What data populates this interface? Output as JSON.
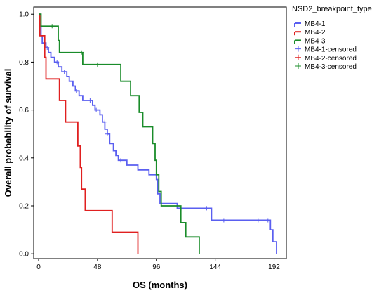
{
  "chart_data": {
    "type": "line",
    "title": "",
    "xlabel": "OS (months)",
    "ylabel": "Overall probability of survival",
    "xlim": [
      -4,
      202
    ],
    "ylim": [
      -0.02,
      1.03
    ],
    "x_ticks": [
      "0",
      "48",
      "96",
      "144",
      "192"
    ],
    "x_tick_values": [
      0,
      48,
      96,
      144,
      192
    ],
    "y_ticks": [
      "0.0",
      "0.2",
      "0.4",
      "0.6",
      "0.8",
      "1.0"
    ],
    "y_tick_values": [
      0.0,
      0.2,
      0.4,
      0.6,
      0.8,
      1.0
    ],
    "legend_title": "NSD2_breakpoint_type",
    "legend_position": "right",
    "series": [
      {
        "name": "MB4-1",
        "color": "#5a5ff0",
        "steps": [
          [
            0,
            1.0
          ],
          [
            1,
            0.95
          ],
          [
            2,
            0.91
          ],
          [
            3,
            0.88
          ],
          [
            6,
            0.86
          ],
          [
            8,
            0.84
          ],
          [
            10,
            0.82
          ],
          [
            13,
            0.8
          ],
          [
            16,
            0.78
          ],
          [
            19,
            0.76
          ],
          [
            23,
            0.74
          ],
          [
            25,
            0.72
          ],
          [
            28,
            0.7
          ],
          [
            30,
            0.68
          ],
          [
            33,
            0.66
          ],
          [
            36,
            0.64
          ],
          [
            44,
            0.62
          ],
          [
            46,
            0.6
          ],
          [
            50,
            0.58
          ],
          [
            52,
            0.55
          ],
          [
            54,
            0.52
          ],
          [
            56,
            0.5
          ],
          [
            58,
            0.46
          ],
          [
            61,
            0.43
          ],
          [
            63,
            0.41
          ],
          [
            65,
            0.39
          ],
          [
            72,
            0.37
          ],
          [
            81,
            0.35
          ],
          [
            90,
            0.33
          ],
          [
            96,
            0.31
          ],
          [
            97,
            0.25
          ],
          [
            99,
            0.21
          ],
          [
            113,
            0.19
          ],
          [
            141,
            0.14
          ],
          [
            189,
            0.1
          ],
          [
            191,
            0.05
          ],
          [
            194,
            0.0
          ]
        ],
        "censored": [
          [
            7,
            0.86
          ],
          [
            15,
            0.8
          ],
          [
            21,
            0.76
          ],
          [
            31,
            0.68
          ],
          [
            42,
            0.64
          ],
          [
            47,
            0.6
          ],
          [
            54,
            0.55
          ],
          [
            56,
            0.5
          ],
          [
            67,
            0.39
          ],
          [
            117,
            0.19
          ],
          [
            137,
            0.19
          ],
          [
            151,
            0.14
          ],
          [
            179,
            0.14
          ],
          [
            187,
            0.14
          ]
        ]
      },
      {
        "name": "MB4-2",
        "color": "#e02020",
        "steps": [
          [
            0,
            1.0
          ],
          [
            1,
            0.91
          ],
          [
            5,
            0.82
          ],
          [
            6,
            0.73
          ],
          [
            17,
            0.64
          ],
          [
            22,
            0.55
          ],
          [
            32,
            0.45
          ],
          [
            34,
            0.36
          ],
          [
            35,
            0.27
          ],
          [
            38,
            0.18
          ],
          [
            60,
            0.09
          ],
          [
            81,
            0.0
          ]
        ],
        "censored": []
      },
      {
        "name": "MB4-3",
        "color": "#1a8c2a",
        "steps": [
          [
            0,
            1.0
          ],
          [
            2,
            0.95
          ],
          [
            16,
            0.89
          ],
          [
            17,
            0.84
          ],
          [
            36,
            0.79
          ],
          [
            67,
            0.72
          ],
          [
            75,
            0.66
          ],
          [
            82,
            0.59
          ],
          [
            85,
            0.53
          ],
          [
            93,
            0.46
          ],
          [
            95,
            0.39
          ],
          [
            96,
            0.33
          ],
          [
            98,
            0.26
          ],
          [
            100,
            0.2
          ],
          [
            116,
            0.13
          ],
          [
            120,
            0.07
          ],
          [
            131,
            0.0
          ]
        ],
        "censored": [
          [
            11,
            0.95
          ],
          [
            35,
            0.84
          ],
          [
            48,
            0.79
          ]
        ]
      }
    ],
    "legend_censored": [
      {
        "label": "MB4-1-censored",
        "color": "#5a5ff0"
      },
      {
        "label": "MB4-2-censored",
        "color": "#e02020"
      },
      {
        "label": "MB4-3-censored",
        "color": "#1a8c2a"
      }
    ]
  }
}
